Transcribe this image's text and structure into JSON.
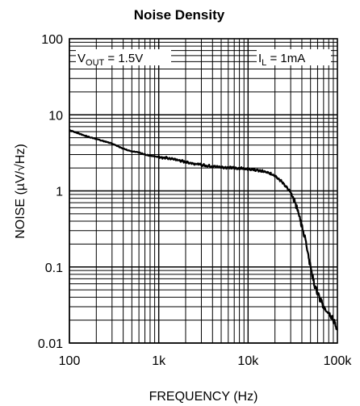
{
  "chart_data": {
    "type": "line",
    "title": "Noise Density",
    "xlabel": "FREQUENCY (Hz)",
    "ylabel": "NOISE (µV/√Hz)",
    "xscale": "log",
    "yscale": "log",
    "xlim": [
      100,
      100000
    ],
    "ylim": [
      0.01,
      100
    ],
    "grid": true,
    "x_tick_labels": [
      "100",
      "1k",
      "10k",
      "100k"
    ],
    "y_tick_labels": [
      "100",
      "10",
      "1",
      "0.1",
      "0.01"
    ],
    "annotations": [
      {
        "text": "V",
        "sub": "OUT",
        "rest": " = 1.5V"
      },
      {
        "text": "I",
        "sub": "L",
        "rest": " = 1mA"
      }
    ],
    "series": [
      {
        "x": [
          100,
          150,
          200,
          300,
          400,
          500,
          600,
          700,
          800,
          1000,
          1500,
          2000,
          3000,
          4000,
          5000,
          7000,
          10000,
          13000,
          15000,
          20000,
          25000,
          30000,
          35000,
          40000,
          45000,
          50000,
          55000,
          60000,
          65000,
          70000,
          80000,
          90000,
          100000
        ],
        "y": [
          6.3,
          5.3,
          4.8,
          4.2,
          3.6,
          3.3,
          3.2,
          3.0,
          2.9,
          2.8,
          2.6,
          2.4,
          2.2,
          2.1,
          2.05,
          2.0,
          1.95,
          1.85,
          1.8,
          1.6,
          1.25,
          0.95,
          0.62,
          0.35,
          0.2,
          0.1,
          0.06,
          0.045,
          0.036,
          0.03,
          0.024,
          0.02,
          0.015
        ]
      }
    ]
  }
}
